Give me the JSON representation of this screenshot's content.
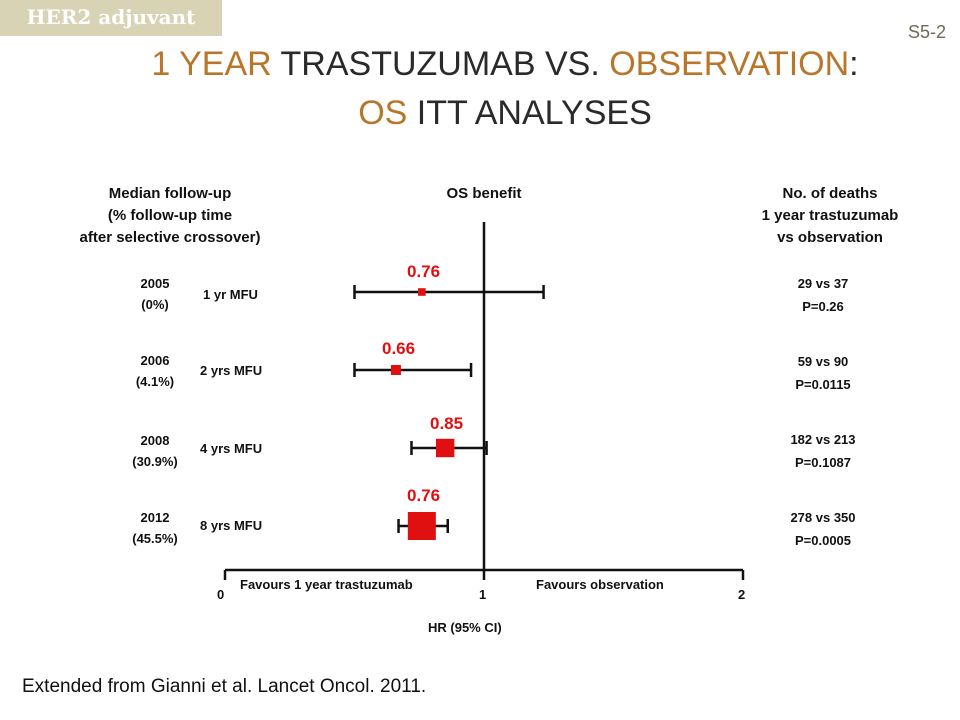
{
  "tag": "HER2 adjuvant",
  "slide_number": "S5-2",
  "title": {
    "line1_a": "1 YEAR",
    "line1_b": " TRASTUZUMAB VS. ",
    "line1_c": "OBSERVATION",
    "line1_d": ":",
    "line2_a": "OS",
    "line2_b": " ITT ANALYSES"
  },
  "headers": {
    "left": [
      "Median follow-up",
      "(% follow-up time",
      "after selective crossover)"
    ],
    "center": "OS benefit",
    "right": [
      "No. of deaths",
      "1 year trastuzumab",
      "vs observation"
    ]
  },
  "rows": [
    {
      "year": "2005",
      "pct": "(0%)",
      "mfu": "1 yr MFU",
      "deaths": "29 vs 37",
      "p": "P=0.26",
      "hr_label": "0.76"
    },
    {
      "year": "2006",
      "pct": "(4.1%)",
      "mfu": "2 yrs MFU",
      "deaths": "59 vs 90",
      "p": "P=0.0115",
      "hr_label": "0.66"
    },
    {
      "year": "2008",
      "pct": "(30.9%)",
      "mfu": "4 yrs MFU",
      "deaths": "182 vs 213",
      "p": "P=0.1087",
      "hr_label": "0.85"
    },
    {
      "year": "2012",
      "pct": "(45.5%)",
      "mfu": "8 yrs MFU",
      "deaths": "278 vs 350",
      "p": "P=0.0005",
      "hr_label": "0.76"
    }
  ],
  "axis": {
    "favours_left": "Favours  1 year  trastuzumab",
    "favours_right": "Favours  observation",
    "ticks": [
      "0",
      "1",
      "2"
    ],
    "xlabel": "HR (95% CI)"
  },
  "source": "Extended from Gianni et al. Lancet Oncol. 2011.",
  "colors": {
    "accent": "#b8762a",
    "point": "#e01010",
    "tag_bg": "#d9d3b5"
  },
  "chart_data": {
    "type": "forest",
    "title": "OS benefit",
    "xlabel": "HR (95% CI)",
    "xlim": [
      0,
      2
    ],
    "reference_line": 1,
    "categories": [
      "2005",
      "2006",
      "2008",
      "2012"
    ],
    "series": [
      {
        "values": [
          0.76,
          0.66,
          0.85,
          0.76
        ],
        "ci_lower": [
          0.5,
          0.5,
          0.72,
          0.67
        ],
        "ci_upper": [
          1.23,
          0.95,
          1.01,
          0.86
        ],
        "relative_weight": [
          0.15,
          0.25,
          0.6,
          1.0
        ]
      }
    ]
  }
}
